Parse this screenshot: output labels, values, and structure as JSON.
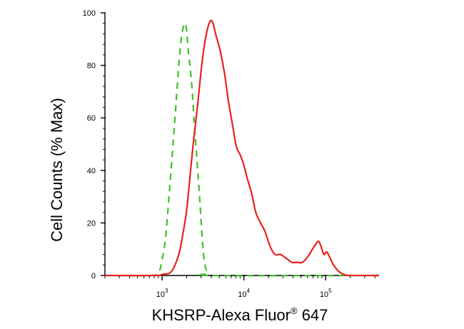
{
  "chart_data": {
    "type": "line",
    "xlabel": "KHSRP-Alexa Fluor",
    "xlabel_mark": "®",
    "xlabel_suffix": " 647",
    "ylabel": "Cell Counts (% Max)",
    "x_scale": "log",
    "xlim": [
      200,
      450000
    ],
    "ylim": [
      0,
      100
    ],
    "y_ticks": [
      0,
      20,
      40,
      60,
      80,
      100
    ],
    "x_ticks": [
      {
        "value": 1000,
        "base": "10",
        "exp": "3"
      },
      {
        "value": 10000,
        "base": "10",
        "exp": "4"
      },
      {
        "value": 100000,
        "base": "10",
        "exp": "5"
      }
    ],
    "grid": false,
    "series": [
      {
        "color": "#e8201c",
        "dash": "solid",
        "points": [
          [
            200,
            0
          ],
          [
            800,
            0
          ],
          [
            1000,
            0.4
          ],
          [
            1300,
            1.5
          ],
          [
            1600,
            8
          ],
          [
            1800,
            16
          ],
          [
            2000,
            25
          ],
          [
            2200,
            38
          ],
          [
            2400,
            50
          ],
          [
            2700,
            64
          ],
          [
            3000,
            78
          ],
          [
            3300,
            88
          ],
          [
            3600,
            94
          ],
          [
            3900,
            97
          ],
          [
            4200,
            96
          ],
          [
            4600,
            91
          ],
          [
            5100,
            86
          ],
          [
            5800,
            77
          ],
          [
            6500,
            66
          ],
          [
            7300,
            57
          ],
          [
            8100,
            49
          ],
          [
            9000,
            46
          ],
          [
            10000,
            42
          ],
          [
            11000,
            37
          ],
          [
            12500,
            31
          ],
          [
            14000,
            24
          ],
          [
            16000,
            20
          ],
          [
            18000,
            17
          ],
          [
            21000,
            11
          ],
          [
            24000,
            8
          ],
          [
            28000,
            8
          ],
          [
            33000,
            6.5
          ],
          [
            39000,
            5
          ],
          [
            45000,
            5
          ],
          [
            52000,
            5
          ],
          [
            60000,
            7
          ],
          [
            69000,
            10
          ],
          [
            76000,
            12
          ],
          [
            82000,
            13
          ],
          [
            88000,
            11
          ],
          [
            95000,
            8
          ],
          [
            103000,
            9
          ],
          [
            112000,
            7
          ],
          [
            125000,
            4
          ],
          [
            145000,
            1.5
          ],
          [
            170000,
            0.3
          ],
          [
            200000,
            0
          ],
          [
            450000,
            0
          ]
        ]
      },
      {
        "color": "#3fbf2a",
        "dash": "dashed",
        "points": [
          [
            200,
            0
          ],
          [
            700,
            0
          ],
          [
            900,
            1
          ],
          [
            1000,
            6
          ],
          [
            1100,
            14
          ],
          [
            1200,
            28
          ],
          [
            1300,
            42
          ],
          [
            1400,
            55
          ],
          [
            1500,
            68
          ],
          [
            1600,
            80
          ],
          [
            1700,
            89
          ],
          [
            1800,
            94
          ],
          [
            1900,
            96
          ],
          [
            2000,
            93
          ],
          [
            2100,
            85
          ],
          [
            2300,
            73
          ],
          [
            2500,
            56
          ],
          [
            2700,
            42
          ],
          [
            2900,
            28
          ],
          [
            3100,
            14
          ],
          [
            3300,
            5
          ],
          [
            3600,
            1
          ],
          [
            4000,
            0
          ],
          [
            450000,
            0
          ]
        ]
      }
    ]
  }
}
